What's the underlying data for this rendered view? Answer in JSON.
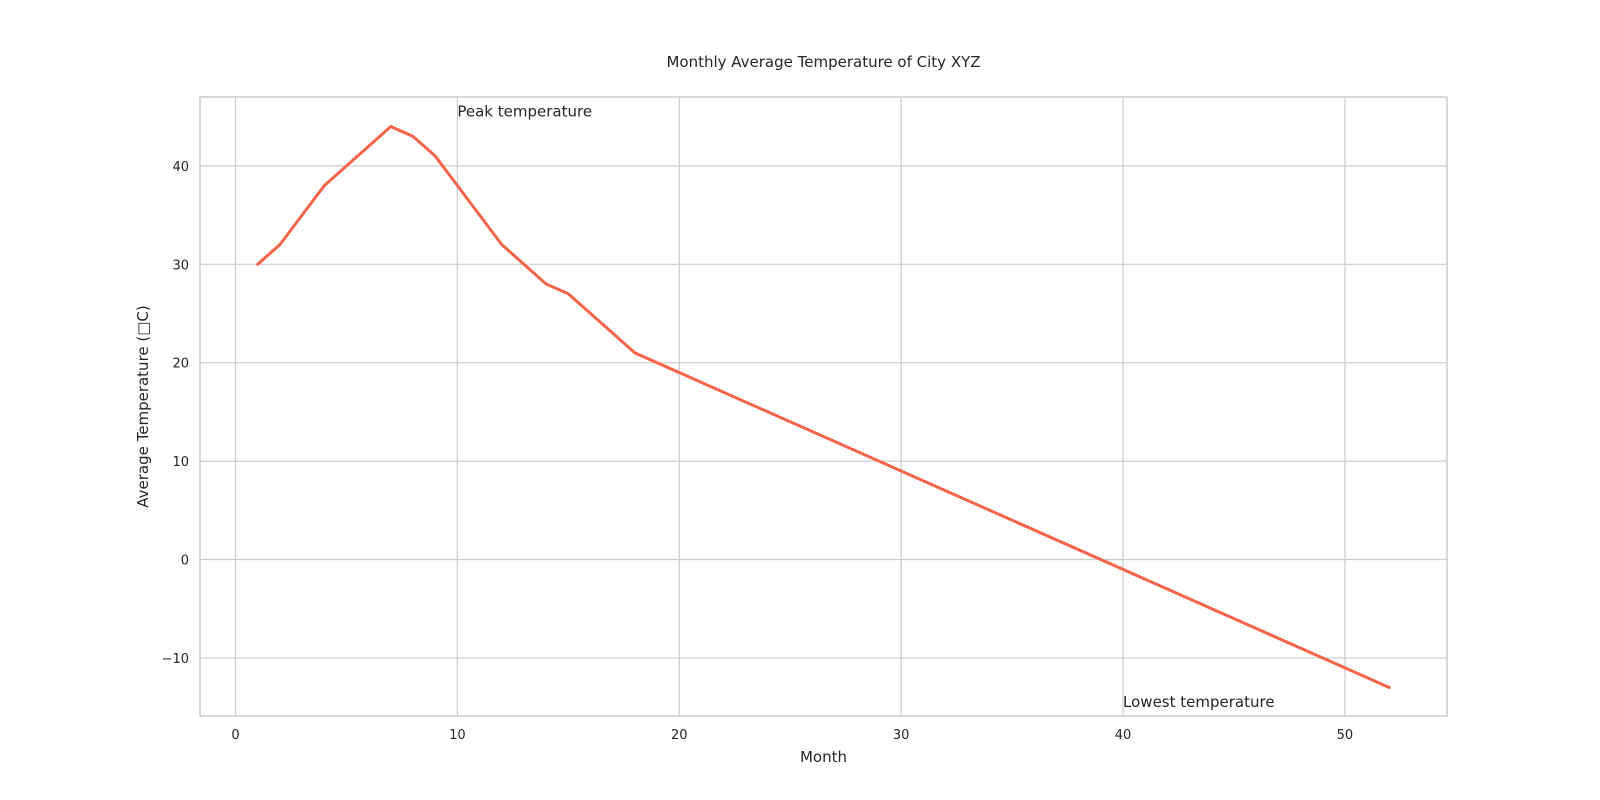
{
  "chart_data": {
    "type": "line",
    "title": "Monthly Average Temperature of City XYZ",
    "xlabel": "Month",
    "ylabel": "Average Temperature (□C)",
    "xlim": [
      -1.6,
      54.6
    ],
    "ylim": [
      -15.9,
      47
    ],
    "xticks": [
      0,
      10,
      20,
      30,
      40,
      50
    ],
    "yticks": [
      -10,
      0,
      10,
      20,
      30,
      40
    ],
    "grid": true,
    "colors": {
      "line": "#f4644a",
      "grid": "#cccccc",
      "frame": "#cccccc"
    },
    "series": [
      {
        "x": [
          1,
          2,
          4,
          7,
          8,
          9,
          12,
          14,
          15,
          18,
          52
        ],
        "y": [
          30,
          32,
          38,
          44,
          43,
          41,
          32,
          28,
          27,
          21,
          -13
        ]
      }
    ],
    "annotations": [
      {
        "text": "Peak temperature",
        "x": 10,
        "y": 45
      },
      {
        "text": "Lowest temperature",
        "x": 40,
        "y": -15
      }
    ]
  }
}
